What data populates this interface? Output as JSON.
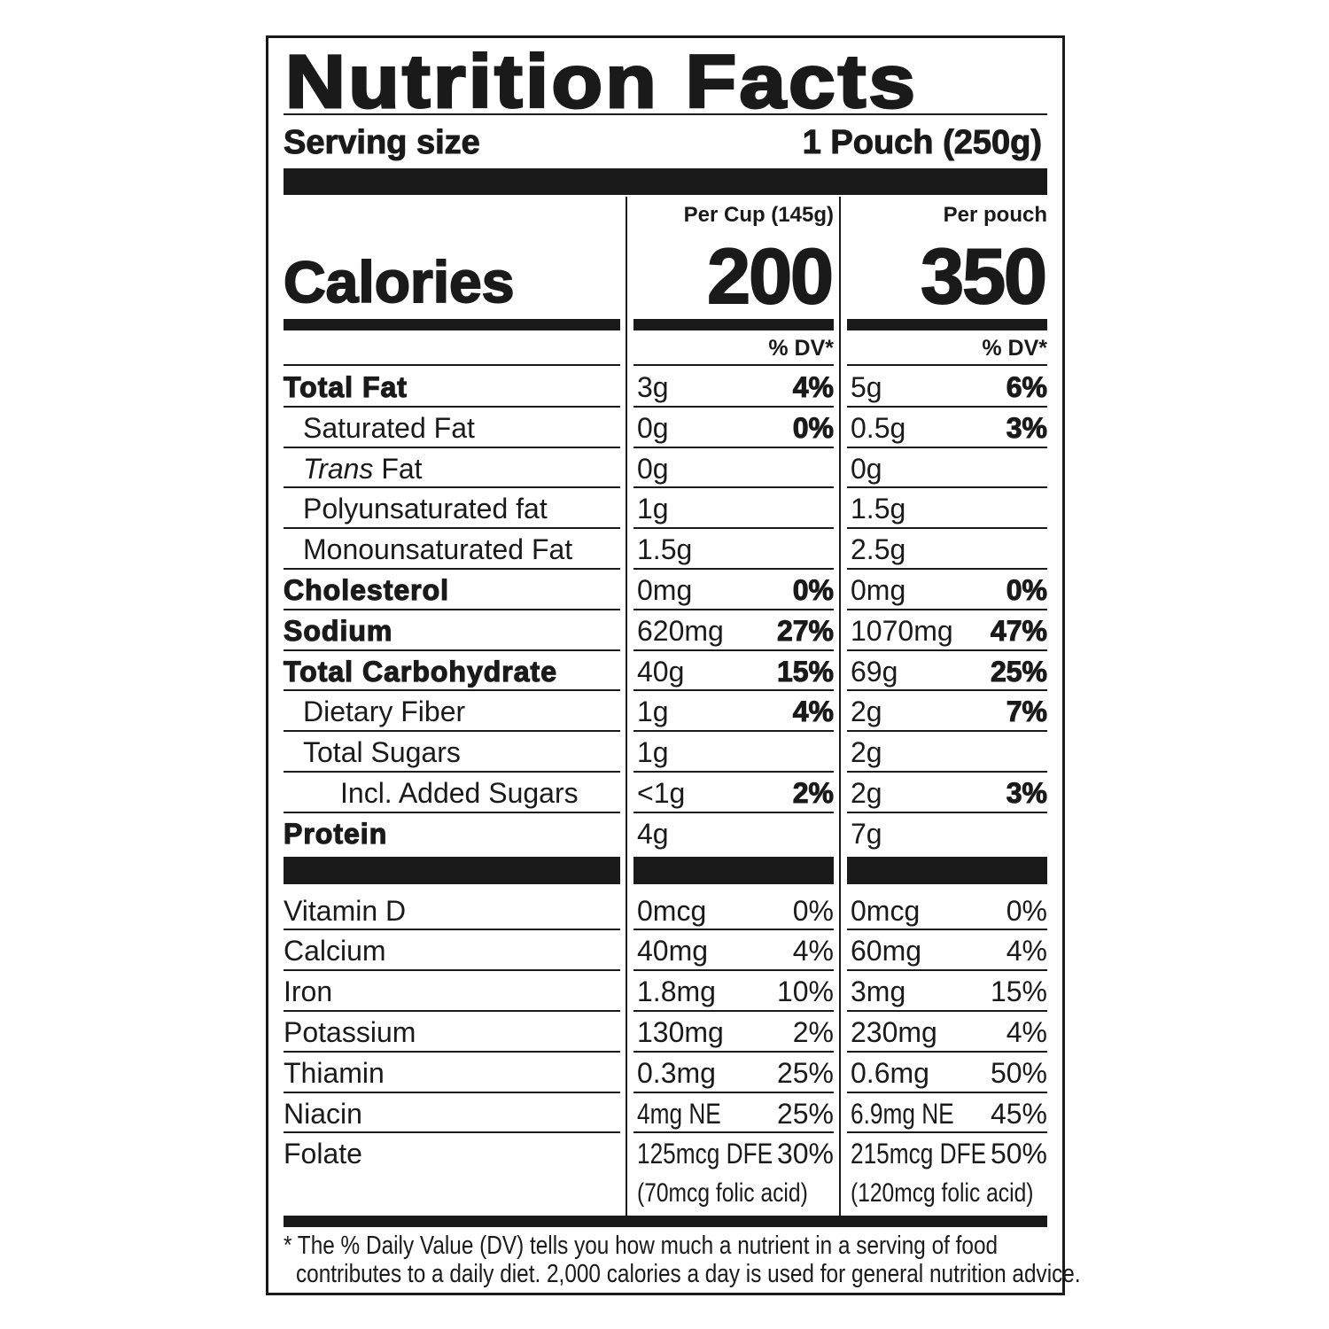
{
  "title": "Nutrition Facts",
  "serving": {
    "label": "Serving size",
    "value": "1 Pouch (250g)"
  },
  "calories_label": "Calories",
  "columns": [
    {
      "header": "Per Cup (145g)",
      "calories": 200,
      "dv_header": "% DV*"
    },
    {
      "header": "Per pouch",
      "calories": 350,
      "dv_header": "% DV*"
    }
  ],
  "nutrients": [
    {
      "name": "Total Fat",
      "bold": true,
      "indent": 0,
      "cells": [
        {
          "amount": "3g",
          "dv": "4%"
        },
        {
          "amount": "5g",
          "dv": "6%"
        }
      ]
    },
    {
      "name": "Saturated Fat",
      "bold": false,
      "indent": 1,
      "cells": [
        {
          "amount": "0g",
          "dv": "0%"
        },
        {
          "amount": "0.5g",
          "dv": "3%"
        }
      ]
    },
    {
      "italic_prefix": "Trans",
      "name": " Fat",
      "bold": false,
      "indent": 1,
      "cells": [
        {
          "amount": "0g"
        },
        {
          "amount": "0g"
        }
      ]
    },
    {
      "name": "Polyunsaturated fat",
      "bold": false,
      "indent": 1,
      "cells": [
        {
          "amount": "1g"
        },
        {
          "amount": "1.5g"
        }
      ]
    },
    {
      "name": "Monounsaturated Fat",
      "bold": false,
      "indent": 1,
      "cells": [
        {
          "amount": "1.5g"
        },
        {
          "amount": "2.5g"
        }
      ]
    },
    {
      "name": "Cholesterol",
      "bold": true,
      "indent": 0,
      "cells": [
        {
          "amount": "0mg",
          "dv": "0%"
        },
        {
          "amount": "0mg",
          "dv": "0%"
        }
      ]
    },
    {
      "name": "Sodium",
      "bold": true,
      "indent": 0,
      "cells": [
        {
          "amount": "620mg",
          "dv": "27%"
        },
        {
          "amount": "1070mg",
          "dv": "47%"
        }
      ]
    },
    {
      "name": "Total Carbohydrate",
      "bold": true,
      "indent": 0,
      "cells": [
        {
          "amount": "40g",
          "dv": "15%"
        },
        {
          "amount": "69g",
          "dv": "25%"
        }
      ]
    },
    {
      "name": "Dietary Fiber",
      "bold": false,
      "indent": 1,
      "cells": [
        {
          "amount": "1g",
          "dv": "4%"
        },
        {
          "amount": "2g",
          "dv": "7%"
        }
      ]
    },
    {
      "name": "Total Sugars",
      "bold": false,
      "indent": 1,
      "cells": [
        {
          "amount": "1g"
        },
        {
          "amount": "2g"
        }
      ]
    },
    {
      "name": "Incl. Added Sugars",
      "bold": false,
      "indent": 2,
      "cells": [
        {
          "amount": "<1g",
          "dv": "2%"
        },
        {
          "amount": "2g",
          "dv": "3%"
        }
      ]
    },
    {
      "name": "Protein",
      "bold": true,
      "indent": 0,
      "cells": [
        {
          "amount": "4g"
        },
        {
          "amount": "7g"
        }
      ]
    }
  ],
  "vitamins": [
    {
      "name": "Vitamin D",
      "condensed": false,
      "cells": [
        {
          "amount": "0mcg",
          "dv": "0%"
        },
        {
          "amount": "0mcg",
          "dv": "0%"
        }
      ]
    },
    {
      "name": "Calcium",
      "condensed": false,
      "cells": [
        {
          "amount": "40mg",
          "dv": "4%"
        },
        {
          "amount": "60mg",
          "dv": "4%"
        }
      ]
    },
    {
      "name": "Iron",
      "condensed": false,
      "cells": [
        {
          "amount": "1.8mg",
          "dv": "10%"
        },
        {
          "amount": "3mg",
          "dv": "15%"
        }
      ]
    },
    {
      "name": "Potassium",
      "condensed": false,
      "cells": [
        {
          "amount": "130mg",
          "dv": "2%"
        },
        {
          "amount": "230mg",
          "dv": "4%"
        }
      ]
    },
    {
      "name": "Thiamin",
      "condensed": false,
      "cells": [
        {
          "amount": "0.3mg",
          "dv": "25%"
        },
        {
          "amount": "0.6mg",
          "dv": "50%"
        }
      ]
    },
    {
      "name": "Niacin",
      "condensed": true,
      "cells": [
        {
          "amount": "4mg NE",
          "dv": "25%"
        },
        {
          "amount": "6.9mg NE",
          "dv": "45%"
        }
      ]
    },
    {
      "name": "Folate",
      "condensed": true,
      "cells": [
        {
          "amount": "125mcg DFE",
          "dv": "30%",
          "note": "(70mcg folic acid)"
        },
        {
          "amount": "215mcg DFE",
          "dv": "50%",
          "note": "(120mcg folic acid)"
        }
      ]
    }
  ],
  "footnote": [
    "* The % Daily Value (DV) tells you how much a nutrient in a serving of food",
    "contributes to a daily diet. 2,000 calories a day is used for general nutrition advice."
  ]
}
